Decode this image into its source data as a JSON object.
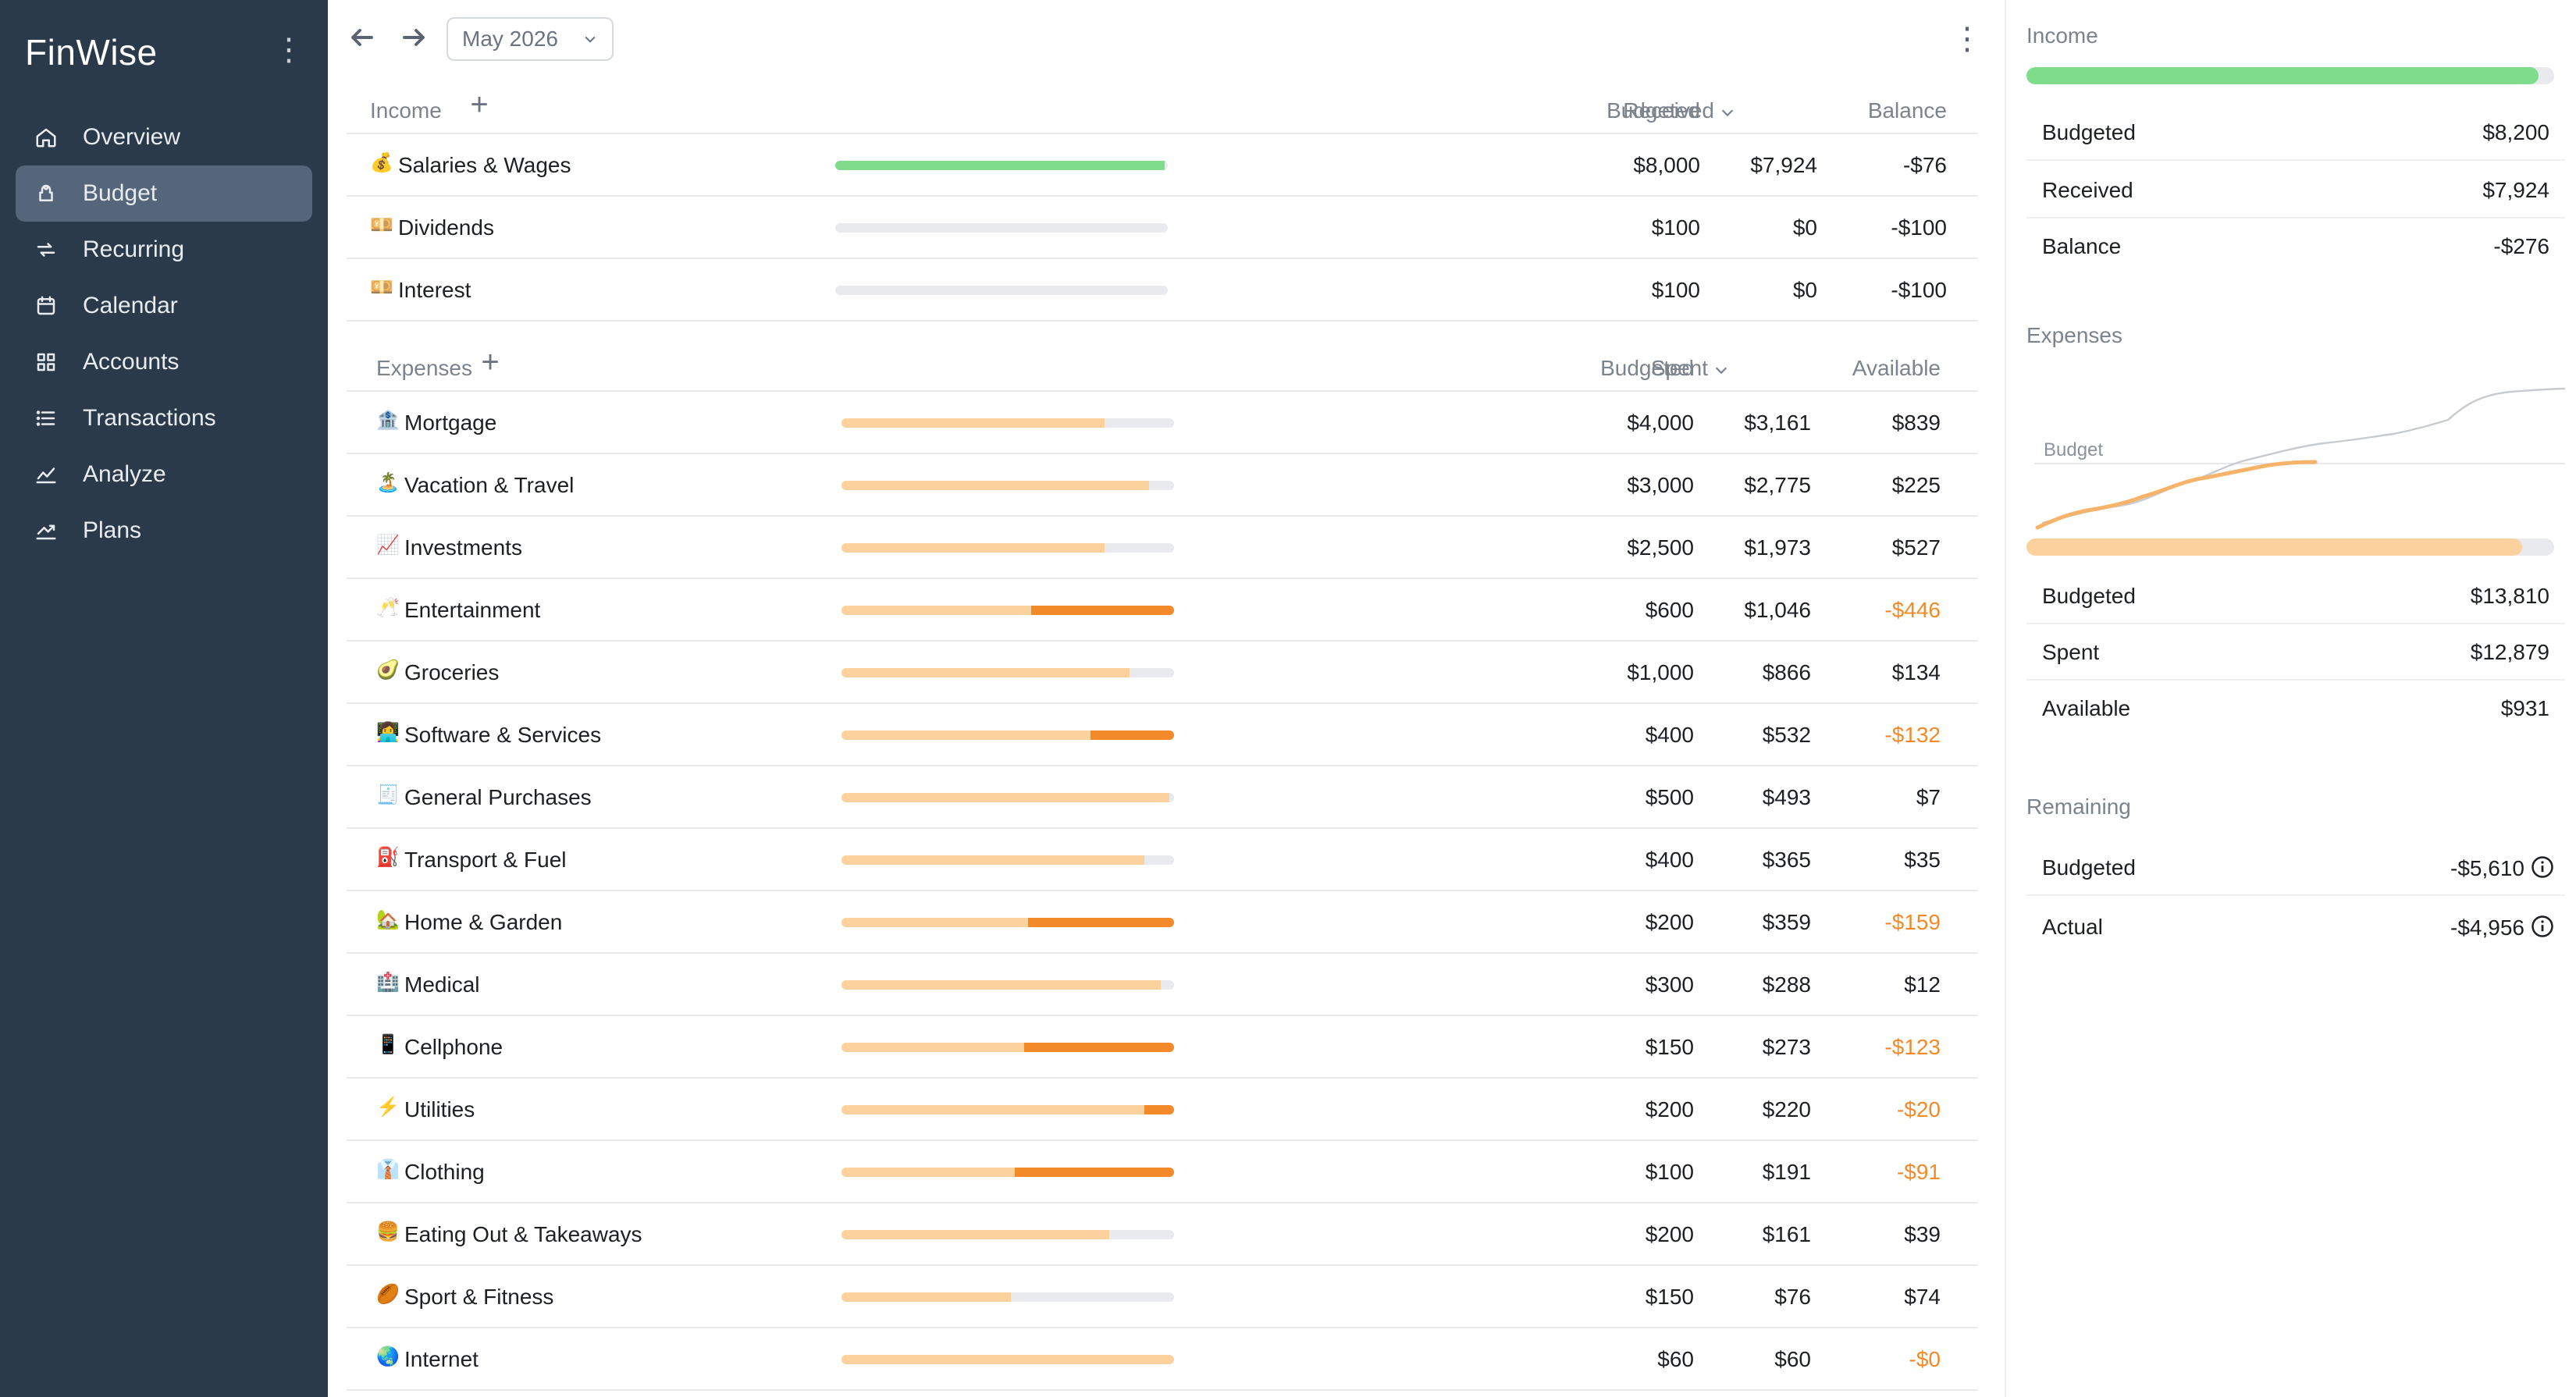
{
  "app": {
    "name": "FinWise"
  },
  "sidebar": {
    "items": [
      {
        "label": "Overview",
        "icon": "home-icon",
        "active": false
      },
      {
        "label": "Budget",
        "icon": "piggy-bank-icon",
        "active": true
      },
      {
        "label": "Recurring",
        "icon": "repeat-icon",
        "active": false
      },
      {
        "label": "Calendar",
        "icon": "calendar-icon",
        "active": false
      },
      {
        "label": "Accounts",
        "icon": "grid-icon",
        "active": false
      },
      {
        "label": "Transactions",
        "icon": "list-icon",
        "active": false
      },
      {
        "label": "Analyze",
        "icon": "chart-icon",
        "active": false
      },
      {
        "label": "Plans",
        "icon": "trend-icon",
        "active": false
      }
    ]
  },
  "toolbar": {
    "month": "May 2026"
  },
  "income": {
    "title": "Income",
    "columns": {
      "budgeted": "Budgeted",
      "received": "Received",
      "balance": "Balance"
    },
    "rows": [
      {
        "emoji": "💰",
        "name": "Salaries & Wages",
        "budgeted": "$8,000",
        "received": "$7,924",
        "balance": "-$76",
        "progress": 0.99,
        "over": 0
      },
      {
        "emoji": "💴",
        "name": "Dividends",
        "budgeted": "$100",
        "received": "$0",
        "balance": "-$100",
        "progress": 0,
        "over": 0
      },
      {
        "emoji": "💴",
        "name": "Interest",
        "budgeted": "$100",
        "received": "$0",
        "balance": "-$100",
        "progress": 0,
        "over": 0
      }
    ]
  },
  "expenses": {
    "title": "Expenses",
    "columns": {
      "budgeted": "Budgeted",
      "spent": "Spent",
      "available": "Available"
    },
    "rows": [
      {
        "emoji": "🏦",
        "name": "Mortgage",
        "budgeted": "$4,000",
        "spent": "$3,161",
        "available": "$839",
        "progress": 0.79,
        "over": 0
      },
      {
        "emoji": "🏝️",
        "name": "Vacation & Travel",
        "budgeted": "$3,000",
        "spent": "$2,775",
        "available": "$225",
        "progress": 0.925,
        "over": 0
      },
      {
        "emoji": "📈",
        "name": "Investments",
        "budgeted": "$2,500",
        "spent": "$1,973",
        "available": "$527",
        "progress": 0.79,
        "over": 0
      },
      {
        "emoji": "🥂",
        "name": "Entertainment",
        "budgeted": "$600",
        "spent": "$1,046",
        "available": "-$446",
        "progress": 1,
        "over": 0.43
      },
      {
        "emoji": "🥑",
        "name": "Groceries",
        "budgeted": "$1,000",
        "spent": "$866",
        "available": "$134",
        "progress": 0.866,
        "over": 0
      },
      {
        "emoji": "👩‍💻",
        "name": "Software & Services",
        "budgeted": "$400",
        "spent": "$532",
        "available": "-$132",
        "progress": 1,
        "over": 0.25
      },
      {
        "emoji": "🧾",
        "name": "General Purchases",
        "budgeted": "$500",
        "spent": "$493",
        "available": "$7",
        "progress": 0.986,
        "over": 0
      },
      {
        "emoji": "⛽",
        "name": "Transport & Fuel",
        "budgeted": "$400",
        "spent": "$365",
        "available": "$35",
        "progress": 0.91,
        "over": 0
      },
      {
        "emoji": "🏡",
        "name": "Home & Garden",
        "budgeted": "$200",
        "spent": "$359",
        "available": "-$159",
        "progress": 1,
        "over": 0.44
      },
      {
        "emoji": "🏥",
        "name": "Medical",
        "budgeted": "$300",
        "spent": "$288",
        "available": "$12",
        "progress": 0.96,
        "over": 0
      },
      {
        "emoji": "📱",
        "name": "Cellphone",
        "budgeted": "$150",
        "spent": "$273",
        "available": "-$123",
        "progress": 1,
        "over": 0.45
      },
      {
        "emoji": "⚡",
        "name": "Utilities",
        "budgeted": "$200",
        "spent": "$220",
        "available": "-$20",
        "progress": 1,
        "over": 0.09
      },
      {
        "emoji": "👔",
        "name": "Clothing",
        "budgeted": "$100",
        "spent": "$191",
        "available": "-$91",
        "progress": 1,
        "over": 0.48
      },
      {
        "emoji": "🍔",
        "name": "Eating Out & Takeaways",
        "budgeted": "$200",
        "spent": "$161",
        "available": "$39",
        "progress": 0.805,
        "over": 0
      },
      {
        "emoji": "🏉",
        "name": "Sport & Fitness",
        "budgeted": "$150",
        "spent": "$76",
        "available": "$74",
        "progress": 0.51,
        "over": 0
      },
      {
        "emoji": "🌏",
        "name": "Internet",
        "budgeted": "$60",
        "spent": "$60",
        "available": "-$0",
        "progress": 1,
        "over": 0
      }
    ]
  },
  "summary": {
    "income": {
      "title": "Income",
      "progress": 0.97,
      "budgeted_label": "Budgeted",
      "budgeted": "$8,200",
      "received_label": "Received",
      "received": "$7,924",
      "balance_label": "Balance",
      "balance": "-$276"
    },
    "expenses": {
      "title": "Expenses",
      "chart_label": "Budget",
      "progress": 0.94,
      "budgeted_label": "Budgeted",
      "budgeted": "$13,810",
      "spent_label": "Spent",
      "spent": "$12,879",
      "available_label": "Available",
      "available": "$931"
    },
    "remaining": {
      "title": "Remaining",
      "budgeted_label": "Budgeted",
      "budgeted": "-$5,610",
      "actual_label": "Actual",
      "actual": "-$4,956"
    }
  },
  "colors": {
    "sidebar": "#2b3a4a",
    "sidebar_active": "#55667a",
    "income_bar": "#7edc8c",
    "expense_bar": "#fbd29e",
    "overspend": "#f28a2a",
    "track": "#e8eaed"
  }
}
